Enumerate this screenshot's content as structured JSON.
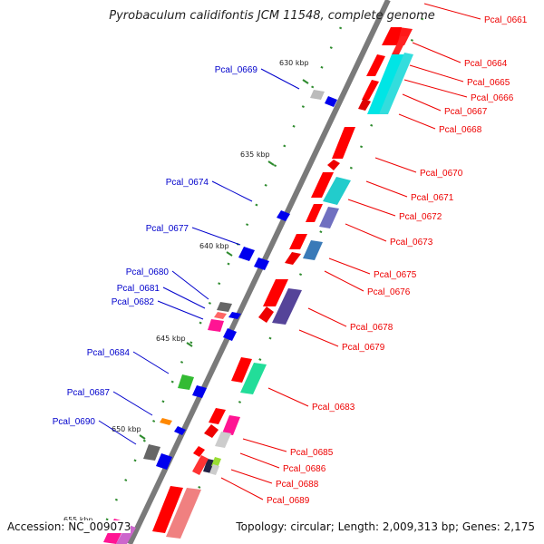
{
  "title": "Pyrobaculum calidifontis JCM 11548, complete genome",
  "footer": {
    "accession": "Accession: NC_009073",
    "summary": "Topology: circular; Length: 2,009,313 bp; Genes: 2,175"
  },
  "colors": {
    "forward_label": "#ee0000",
    "reverse_label": "#0000cc",
    "backbone": "#777777"
  },
  "ticks": [
    "630 kbp",
    "635 kbp",
    "640 kbp",
    "645 kbp",
    "650 kbp",
    "655 kbp"
  ],
  "genes_right": [
    {
      "label": "Pcal_0661",
      "color": "#ff0000"
    },
    {
      "label": "Pcal_0664",
      "color": "#ff0000"
    },
    {
      "label": "Pcal_0665",
      "color": "#00dddd"
    },
    {
      "label": "Pcal_0666",
      "color": "#00dddd"
    },
    {
      "label": "Pcal_0667",
      "color": "#ff0000"
    },
    {
      "label": "Pcal_0668",
      "color": "#ff0000"
    },
    {
      "label": "Pcal_0670",
      "color": "#ff0000"
    },
    {
      "label": "Pcal_0671",
      "color": "#ff0000"
    },
    {
      "label": "Pcal_0672",
      "color": "#22cccc"
    },
    {
      "label": "Pcal_0673",
      "color": "#7070c0"
    },
    {
      "label": "Pcal_0675",
      "color": "#ff0000"
    },
    {
      "label": "Pcal_0676",
      "color": "#3a7ab8"
    },
    {
      "label": "Pcal_0678",
      "color": "#ff0000"
    },
    {
      "label": "Pcal_0679",
      "color": "#554499"
    },
    {
      "label": "Pcal_0683",
      "color": "#ff0000"
    },
    {
      "label": "Pcal_0685",
      "color": "#ff1493"
    },
    {
      "label": "Pcal_0686",
      "color": "#cccccc"
    },
    {
      "label": "Pcal_0688",
      "color": "#99dd33"
    },
    {
      "label": "Pcal_0689",
      "color": "#ff0000"
    }
  ],
  "genes_left": [
    {
      "label": "Pcal_0669",
      "color": "#bbbbbb"
    },
    {
      "label": "Pcal_0674",
      "color": "#0000ee"
    },
    {
      "label": "Pcal_0677",
      "color": "#0000ee"
    },
    {
      "label": "Pcal_0680",
      "color": "#777777"
    },
    {
      "label": "Pcal_0681",
      "color": "#ff6666"
    },
    {
      "label": "Pcal_0682",
      "color": "#ff1493"
    },
    {
      "label": "Pcal_0684",
      "color": "#33bb33"
    },
    {
      "label": "Pcal_0687",
      "color": "#ff8800"
    },
    {
      "label": "Pcal_0690",
      "color": "#777777"
    }
  ]
}
